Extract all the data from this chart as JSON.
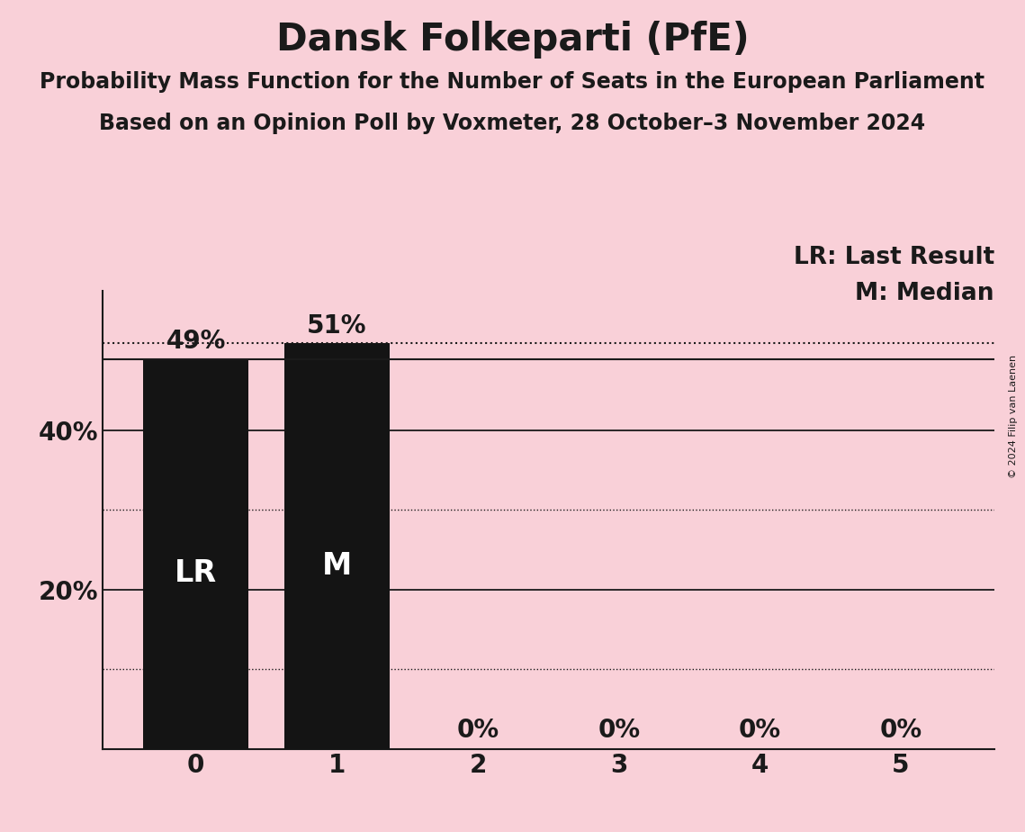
{
  "title": "Dansk Folkeparti (PfE)",
  "subtitle1": "Probability Mass Function for the Number of Seats in the European Parliament",
  "subtitle2": "Based on an Opinion Poll by Voxmeter, 28 October–3 November 2024",
  "copyright": "© 2024 Filip van Laenen",
  "categories": [
    0,
    1,
    2,
    3,
    4,
    5
  ],
  "values": [
    0.49,
    0.51,
    0.0,
    0.0,
    0.0,
    0.0
  ],
  "bar_color": "#141414",
  "background_color": "#f9d0d8",
  "bar_labels": [
    "49%",
    "51%",
    "0%",
    "0%",
    "0%",
    "0%"
  ],
  "bar_annotations": [
    "LR",
    "M",
    "",
    "",
    "",
    ""
  ],
  "lr_value": 0.49,
  "median_value": 0.51,
  "solid_lines": [
    0.2,
    0.4
  ],
  "dotted_lines": [
    0.1,
    0.3
  ],
  "ylim": [
    0,
    0.575
  ],
  "title_fontsize": 30,
  "subtitle_fontsize": 17,
  "label_fontsize": 20,
  "tick_fontsize": 20,
  "annotation_fontsize": 24,
  "legend_fontsize": 19,
  "copyright_fontsize": 8
}
